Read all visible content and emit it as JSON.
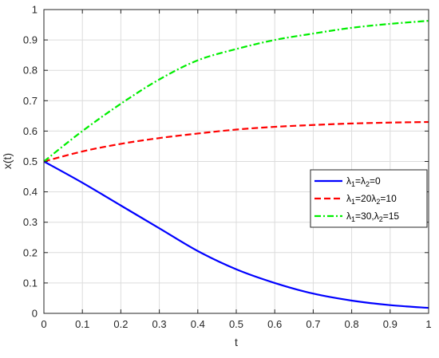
{
  "chart_data": {
    "type": "line",
    "xlabel": "t",
    "ylabel": "x(t)",
    "xlim": [
      0,
      1
    ],
    "ylim": [
      0,
      1
    ],
    "xticks": [
      "0",
      "0.1",
      "0.2",
      "0.3",
      "0.4",
      "0.5",
      "0.6",
      "0.7",
      "0.8",
      "0.9",
      "1"
    ],
    "yticks": [
      "0",
      "0.1",
      "0.2",
      "0.3",
      "0.4",
      "0.5",
      "0.6",
      "0.7",
      "0.8",
      "0.9",
      "1"
    ],
    "grid": true,
    "legend_position": "center-right",
    "x": [
      0,
      0.1,
      0.2,
      0.3,
      0.4,
      0.5,
      0.6,
      0.7,
      0.8,
      0.9,
      1.0
    ],
    "series": [
      {
        "legend": {
          "l1": "λ",
          "s1": "1",
          "mid": "=λ",
          "s2": "2",
          "tail": "=0"
        },
        "color": "#0000ff",
        "dash": "solid",
        "values": [
          0.5,
          0.43,
          0.355,
          0.28,
          0.205,
          0.145,
          0.1,
          0.065,
          0.042,
          0.027,
          0.018
        ]
      },
      {
        "legend": {
          "l1": "λ",
          "s1": "1",
          "mid": "=20λ",
          "s2": "2",
          "tail": "=10"
        },
        "color": "#ff0000",
        "dash": "dashed",
        "values": [
          0.5,
          0.533,
          0.558,
          0.577,
          0.592,
          0.605,
          0.614,
          0.62,
          0.625,
          0.628,
          0.63
        ]
      },
      {
        "legend": {
          "l1": "λ",
          "s1": "1",
          "mid": "=30,λ",
          "s2": "2",
          "tail": "=15"
        },
        "color": "#00ee00",
        "dash": "dashdot",
        "values": [
          0.5,
          0.6,
          0.69,
          0.77,
          0.833,
          0.87,
          0.9,
          0.921,
          0.94,
          0.953,
          0.963
        ]
      }
    ]
  }
}
